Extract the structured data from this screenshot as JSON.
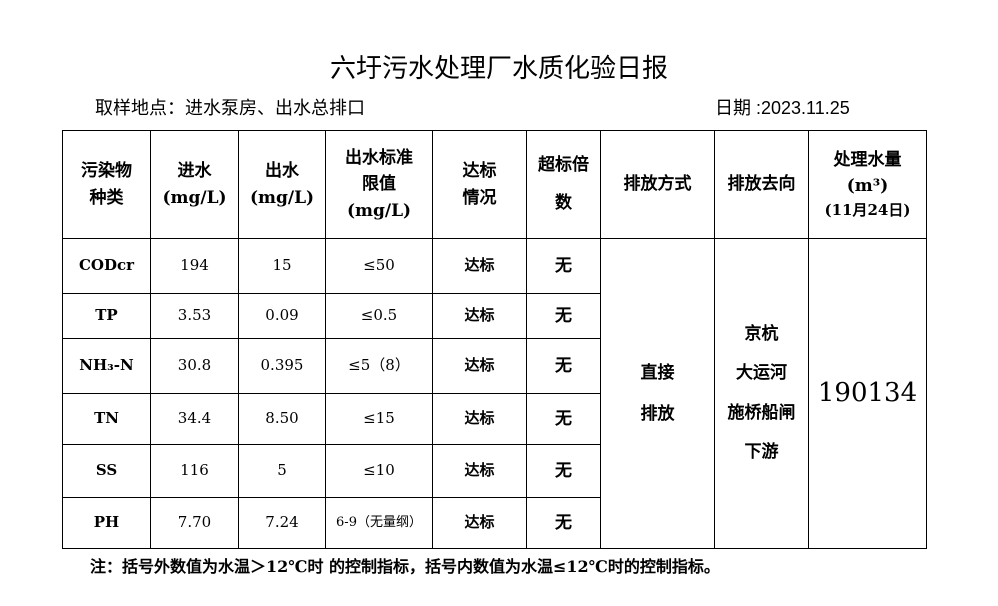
{
  "title": "六圩污水处理厂水质化验日报",
  "location": "取样地点：进水泵房、出水总排口",
  "date": "日期 :2023.11.25",
  "headers": {
    "pollutant": "污染物种类",
    "influent": "进水",
    "influent_unit": "(mg/L)",
    "effluent": "出水",
    "effluent_unit": "(mg/L)",
    "standard": "出水标准限值",
    "standard_unit": "(mg/L)",
    "status": "达标情况",
    "exceed": "超标倍数",
    "method": "排放方式",
    "destination": "排放去向",
    "volume": "处理水量",
    "volume_unit": "(m³)",
    "volume_date": "(11月24日)"
  },
  "rows": [
    {
      "name": "CODcr",
      "in": "194",
      "out": "15",
      "std": "≤50",
      "status": "达标",
      "exceed": "无"
    },
    {
      "name": "TP",
      "in": "3.53",
      "out": "0.09",
      "std": "≤0.5",
      "status": "达标",
      "exceed": "无"
    },
    {
      "name": "NH₃-N",
      "in": "30.8",
      "out": "0.395",
      "std": "≤5（8）",
      "status": "达标",
      "exceed": "无"
    },
    {
      "name": "TN",
      "in": "34.4",
      "out": "8.50",
      "std": "≤15",
      "status": "达标",
      "exceed": "无"
    },
    {
      "name": "SS",
      "in": "116",
      "out": "5",
      "std": "≤10",
      "status": "达标",
      "exceed": "无"
    },
    {
      "name": "PH",
      "in": "7.70",
      "out": "7.24",
      "std": "6-9（无量纲）",
      "status": "达标",
      "exceed": "无"
    }
  ],
  "method": {
    "line1": "直接",
    "line2": "排放"
  },
  "destination": {
    "line1": "京杭",
    "line2": "大运河",
    "line3": "施桥船闸",
    "line4": "下游"
  },
  "volume": "190134",
  "note": "注：括号外数值为水温＞12℃时 的控制指标，括号内数值为水温≤12℃时的控制指标。"
}
